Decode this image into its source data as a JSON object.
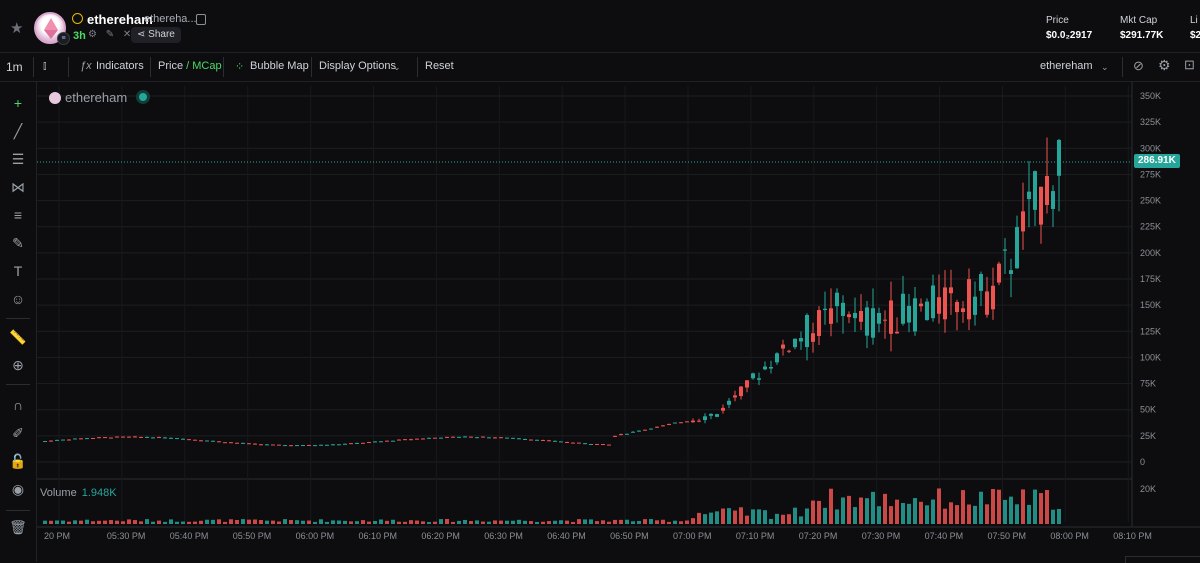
{
  "header": {
    "coin_name": "ethereham",
    "coin_sub": "ethereha...",
    "age": "3h",
    "share_label": "Share",
    "stats": [
      {
        "label": "Price",
        "value": "$0.0₂2917"
      },
      {
        "label": "Mkt Cap",
        "value": "$291.77K"
      },
      {
        "label": "Li",
        "value": "$2"
      }
    ]
  },
  "toolbar": {
    "interval": "1m",
    "indicators": "Indicators",
    "price": "Price",
    "slash": "/",
    "mcap": "MCap",
    "bubble_map": "Bubble Map",
    "display_options": "Display Options",
    "reset": "Reset",
    "symbol": "ethereham"
  },
  "chart": {
    "legend_name": "ethereham",
    "volume_label": "Volume",
    "volume_value": "1.948K",
    "last_value_label": "286.91K"
  },
  "chart_data": {
    "type": "candlestick",
    "y_ticks": [
      "350K",
      "325K",
      "300K",
      "275K",
      "250K",
      "225K",
      "200K",
      "175K",
      "150K",
      "125K",
      "100K",
      "75K",
      "50K",
      "25K",
      "0"
    ],
    "y_range": [
      0,
      350000
    ],
    "volume_ticks": [
      "20K"
    ],
    "x_ticks": [
      "20 PM",
      "05:30 PM",
      "05:40 PM",
      "05:50 PM",
      "06:00 PM",
      "06:10 PM",
      "06:20 PM",
      "06:30 PM",
      "06:40 PM",
      "06:50 PM",
      "07:00 PM",
      "07:10 PM",
      "07:20 PM",
      "07:30 PM",
      "07:40 PM",
      "07:50 PM",
      "08:00 PM",
      "08:10 PM"
    ],
    "last_value": 286910,
    "colors": {
      "up": "#26a69a",
      "down": "#ef5350",
      "last_line": "#26a69a"
    },
    "segments": [
      {
        "from": "05:20 PM",
        "to": "06:30 PM",
        "level": 22000
      },
      {
        "from": "06:50 PM",
        "to": "07:10 PM",
        "level": 35000
      },
      {
        "from": "07:20 PM",
        "to": "07:30 PM",
        "level": 110000
      },
      {
        "from": "07:30 PM",
        "to": "07:50 PM",
        "level": 140000
      },
      {
        "from": "07:55 PM",
        "to": "08:02 PM",
        "level": 286910
      }
    ]
  }
}
